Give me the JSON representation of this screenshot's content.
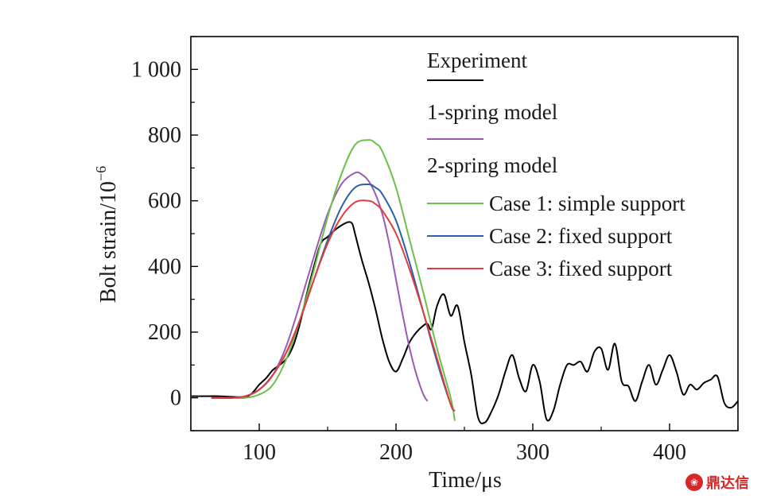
{
  "chart_data": {
    "type": "line",
    "title": "",
    "xlabel": "Time/μs",
    "ylabel_main": "Bolt strain/10",
    "ylabel_exp": "−6",
    "xlim": [
      50,
      450
    ],
    "ylim": [
      -100,
      1100
    ],
    "xticks": [
      100,
      200,
      300,
      400
    ],
    "xtick_labels": [
      "100",
      "200",
      "300",
      "400"
    ],
    "yticks": [
      0,
      200,
      400,
      600,
      800,
      1000
    ],
    "ytick_labels": [
      "0",
      "200",
      "400",
      "600",
      "800",
      "1 000"
    ],
    "legend_position": "top-right",
    "legend": [
      {
        "type": "header",
        "label": "Experiment"
      },
      {
        "type": "swatch",
        "series": 0
      },
      {
        "type": "header",
        "label": "1-spring model"
      },
      {
        "type": "swatch",
        "series": 1
      },
      {
        "type": "header",
        "label": "2-spring model"
      },
      {
        "type": "entry",
        "series": 2,
        "label": "Case 1: simple support"
      },
      {
        "type": "entry",
        "series": 3,
        "label": "Case 2: fixed support"
      },
      {
        "type": "entry",
        "series": 4,
        "label": "Case 3: fixed support"
      }
    ],
    "series": [
      {
        "color": "#000000",
        "x": [
          50,
          60,
          70,
          80,
          90,
          95,
          100,
          105,
          110,
          115,
          120,
          125,
          130,
          135,
          140,
          145,
          150,
          155,
          160,
          165,
          168,
          170,
          175,
          180,
          185,
          190,
          195,
          200,
          205,
          210,
          215,
          220,
          223,
          226,
          230,
          235,
          240,
          245,
          250,
          255,
          260,
          265,
          270,
          275,
          280,
          285,
          290,
          295,
          300,
          305,
          310,
          315,
          320,
          325,
          330,
          335,
          340,
          345,
          350,
          355,
          360,
          365,
          370,
          375,
          380,
          385,
          390,
          395,
          400,
          405,
          410,
          415,
          420,
          425,
          430,
          435,
          440,
          445,
          450
        ],
        "y": [
          5,
          5,
          5,
          3,
          3,
          15,
          40,
          60,
          85,
          100,
          120,
          160,
          230,
          320,
          400,
          470,
          490,
          510,
          525,
          535,
          530,
          500,
          420,
          350,
          270,
          180,
          110,
          80,
          120,
          170,
          200,
          220,
          225,
          210,
          280,
          315,
          250,
          280,
          170,
          70,
          -60,
          -75,
          -40,
          10,
          80,
          130,
          60,
          20,
          100,
          50,
          -65,
          -40,
          40,
          100,
          100,
          110,
          80,
          140,
          150,
          85,
          165,
          50,
          35,
          -10,
          50,
          100,
          40,
          85,
          130,
          80,
          10,
          40,
          25,
          45,
          55,
          65,
          -15,
          -30,
          -10
        ]
      },
      {
        "color": "#9b59b6",
        "x": [
          65,
          80,
          90,
          100,
          110,
          120,
          130,
          140,
          150,
          160,
          170,
          175,
          180,
          185,
          190,
          195,
          200,
          205,
          210,
          215,
          220,
          223
        ],
        "y": [
          0,
          0,
          5,
          25,
          70,
          160,
          290,
          430,
          560,
          650,
          685,
          680,
          660,
          620,
          560,
          470,
          360,
          250,
          150,
          70,
          10,
          -10
        ]
      },
      {
        "color": "#6cc04a",
        "x": [
          65,
          80,
          90,
          100,
          110,
          120,
          130,
          140,
          150,
          160,
          170,
          180,
          185,
          190,
          200,
          210,
          220,
          230,
          240,
          243
        ],
        "y": [
          0,
          0,
          0,
          10,
          40,
          120,
          240,
          390,
          550,
          680,
          770,
          785,
          775,
          750,
          640,
          480,
          320,
          150,
          0,
          -70
        ]
      },
      {
        "color": "#2b5fa8",
        "x": [
          65,
          80,
          90,
          100,
          110,
          120,
          130,
          140,
          150,
          160,
          170,
          180,
          185,
          190,
          200,
          210,
          220,
          230,
          240,
          243
        ],
        "y": [
          0,
          0,
          5,
          25,
          70,
          140,
          240,
          360,
          480,
          580,
          640,
          650,
          640,
          620,
          540,
          410,
          260,
          110,
          -20,
          -40
        ]
      },
      {
        "color": "#e23b3b",
        "x": [
          65,
          80,
          90,
          100,
          110,
          120,
          130,
          140,
          150,
          160,
          170,
          180,
          185,
          190,
          200,
          210,
          220,
          230,
          240,
          243
        ],
        "y": [
          0,
          0,
          5,
          25,
          70,
          140,
          240,
          360,
          470,
          550,
          595,
          600,
          590,
          570,
          500,
          390,
          260,
          120,
          -20,
          -40
        ]
      }
    ]
  },
  "watermark": {
    "mark": "❀",
    "text": "鼎达信"
  }
}
